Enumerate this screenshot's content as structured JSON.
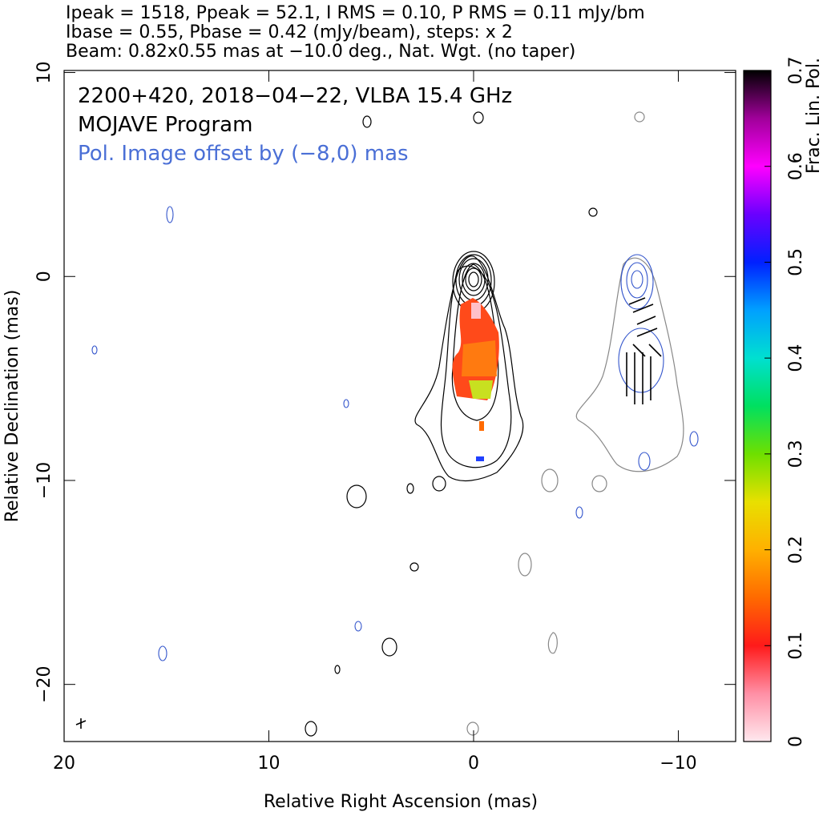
{
  "chart_data": {
    "type": "contour",
    "title_lines": [
      "Ipeak = 1518, Ppeak = 52.1, I RMS = 0.10, P RMS = 0.11 mJy/bm",
      "Ibase = 0.55, Pbase = 0.42 (mJy/beam), steps: x 2",
      "Beam: 0.82x0.55 mas at −10.0 deg., Nat. Wgt. (no taper)"
    ],
    "annotations": [
      "2200+420, 2018−04−22, VLBA 15.4 GHz",
      "MOJAVE Program",
      "Pol. Image offset by (−8,0) mas"
    ],
    "annotation_colors": [
      "#000000",
      "#000000",
      "#4a6fd6"
    ],
    "x_label": "Relative Right Ascension (mas)",
    "y_label": "Relative Declination (mas)",
    "xlim": [
      20,
      -12.8
    ],
    "xticks": [
      20,
      10,
      0,
      {
        "value": -10,
        "label": "−10"
      }
    ],
    "ylim": [
      -22.8,
      10.1
    ],
    "yticks": [
      10,
      0,
      {
        "value": -10,
        "label": "−10"
      },
      {
        "value": -20,
        "label": "−20"
      }
    ],
    "colorbar": {
      "label": "Frac. Lin. Pol.",
      "lim": [
        0,
        0.7
      ],
      "ticks": [
        0,
        0.1,
        0.2,
        0.3,
        0.4,
        0.5,
        0.6,
        0.7
      ],
      "colors": [
        "#ffe8ee",
        "#ff8fa5",
        "#ff1a1a",
        "#ff6a00",
        "#ffb000",
        "#e8e000",
        "#6ee000",
        "#00e060",
        "#00e0d0",
        "#00a0ff",
        "#0020ff",
        "#6a00ff",
        "#ff00ff",
        "#a0009a",
        "#000000"
      ]
    }
  }
}
